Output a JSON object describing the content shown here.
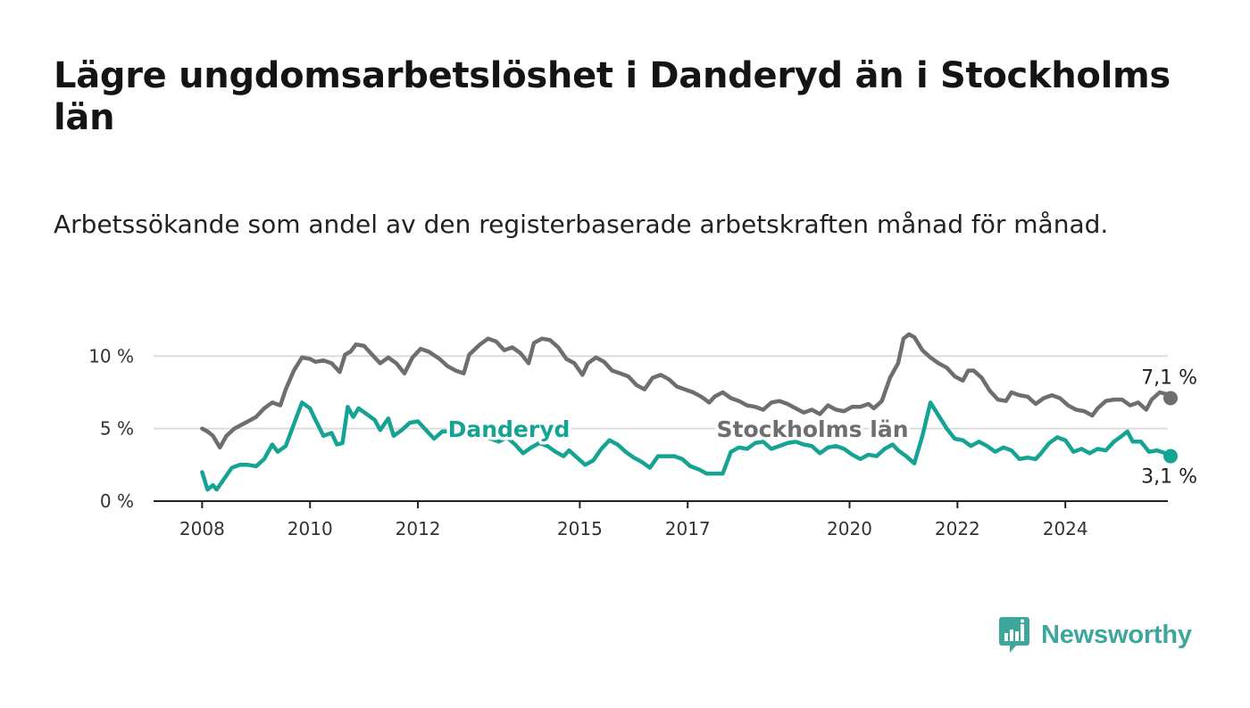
{
  "title": "Lägre ungdomsarbetslöshet i Danderyd än i Stockholms län",
  "subtitle": "Arbetssökande som andel av den registerbaserade arbetskraften månad för månad.",
  "brand": {
    "name": "Newsworthy",
    "color": "#3ea79b"
  },
  "chart_data": {
    "type": "line",
    "title": "Lägre ungdomsarbetslöshet i Danderyd än i Stockholms län",
    "subtitle": "Arbetssökande som andel av den registerbaserade arbetskraften månad för månad.",
    "xlabel": "",
    "ylabel": "",
    "x_range": [
      2007.1,
      2025.9
    ],
    "ylim": [
      0,
      11.8
    ],
    "y_ticks": [
      {
        "value": 0,
        "label": "0 %"
      },
      {
        "value": 5,
        "label": "5 %"
      },
      {
        "value": 10,
        "label": "10 %"
      }
    ],
    "x_ticks": [
      {
        "value": 2008,
        "label": "2008"
      },
      {
        "value": 2010,
        "label": "2010"
      },
      {
        "value": 2012,
        "label": "2012"
      },
      {
        "value": 2015,
        "label": "2015"
      },
      {
        "value": 2017,
        "label": "2017"
      },
      {
        "value": 2020,
        "label": "2020"
      },
      {
        "value": 2022,
        "label": "2022"
      },
      {
        "value": 2024,
        "label": "2024"
      }
    ],
    "grid": "horizontal",
    "legend": "direct labels on lines",
    "series": [
      {
        "name": "Stockholms län",
        "color": "#6e6d72",
        "end_label": "7,1 %",
        "points": [
          [
            2008.0,
            5.0
          ],
          [
            2008.1,
            4.8
          ],
          [
            2008.2,
            4.5
          ],
          [
            2008.33,
            3.7
          ],
          [
            2008.45,
            4.5
          ],
          [
            2008.6,
            5.0
          ],
          [
            2008.75,
            5.3
          ],
          [
            2008.9,
            5.6
          ],
          [
            2009.0,
            5.8
          ],
          [
            2009.15,
            6.4
          ],
          [
            2009.3,
            6.8
          ],
          [
            2009.45,
            6.6
          ],
          [
            2009.55,
            7.7
          ],
          [
            2009.7,
            9.0
          ],
          [
            2009.85,
            9.9
          ],
          [
            2010.0,
            9.8
          ],
          [
            2010.1,
            9.6
          ],
          [
            2010.25,
            9.7
          ],
          [
            2010.4,
            9.5
          ],
          [
            2010.55,
            8.9
          ],
          [
            2010.65,
            10.1
          ],
          [
            2010.75,
            10.3
          ],
          [
            2010.85,
            10.8
          ],
          [
            2011.0,
            10.7
          ],
          [
            2011.15,
            10.1
          ],
          [
            2011.3,
            9.5
          ],
          [
            2011.45,
            9.9
          ],
          [
            2011.6,
            9.5
          ],
          [
            2011.75,
            8.8
          ],
          [
            2011.9,
            9.9
          ],
          [
            2012.05,
            10.5
          ],
          [
            2012.2,
            10.3
          ],
          [
            2012.4,
            9.8
          ],
          [
            2012.55,
            9.3
          ],
          [
            2012.7,
            9.0
          ],
          [
            2012.85,
            8.8
          ],
          [
            2012.95,
            10.1
          ],
          [
            2013.15,
            10.8
          ],
          [
            2013.3,
            11.2
          ],
          [
            2013.45,
            11.0
          ],
          [
            2013.6,
            10.4
          ],
          [
            2013.75,
            10.6
          ],
          [
            2013.9,
            10.2
          ],
          [
            2014.05,
            9.5
          ],
          [
            2014.15,
            10.9
          ],
          [
            2014.3,
            11.2
          ],
          [
            2014.45,
            11.1
          ],
          [
            2014.6,
            10.6
          ],
          [
            2014.75,
            9.8
          ],
          [
            2014.9,
            9.5
          ],
          [
            2015.05,
            8.7
          ],
          [
            2015.15,
            9.5
          ],
          [
            2015.3,
            9.9
          ],
          [
            2015.45,
            9.6
          ],
          [
            2015.6,
            9.0
          ],
          [
            2015.75,
            8.8
          ],
          [
            2015.9,
            8.6
          ],
          [
            2016.05,
            8.0
          ],
          [
            2016.2,
            7.7
          ],
          [
            2016.35,
            8.5
          ],
          [
            2016.5,
            8.7
          ],
          [
            2016.65,
            8.4
          ],
          [
            2016.8,
            7.9
          ],
          [
            2016.95,
            7.7
          ],
          [
            2017.1,
            7.5
          ],
          [
            2017.25,
            7.2
          ],
          [
            2017.4,
            6.8
          ],
          [
            2017.5,
            7.2
          ],
          [
            2017.65,
            7.5
          ],
          [
            2017.8,
            7.1
          ],
          [
            2017.95,
            6.9
          ],
          [
            2018.1,
            6.6
          ],
          [
            2018.25,
            6.5
          ],
          [
            2018.4,
            6.3
          ],
          [
            2018.55,
            6.8
          ],
          [
            2018.7,
            6.9
          ],
          [
            2018.85,
            6.7
          ],
          [
            2019.0,
            6.4
          ],
          [
            2019.15,
            6.1
          ],
          [
            2019.3,
            6.3
          ],
          [
            2019.45,
            6.0
          ],
          [
            2019.6,
            6.6
          ],
          [
            2019.75,
            6.3
          ],
          [
            2019.9,
            6.2
          ],
          [
            2020.05,
            6.5
          ],
          [
            2020.2,
            6.5
          ],
          [
            2020.35,
            6.7
          ],
          [
            2020.45,
            6.4
          ],
          [
            2020.6,
            6.9
          ],
          [
            2020.75,
            8.5
          ],
          [
            2020.9,
            9.5
          ],
          [
            2021.0,
            11.2
          ],
          [
            2021.1,
            11.5
          ],
          [
            2021.2,
            11.3
          ],
          [
            2021.35,
            10.4
          ],
          [
            2021.5,
            9.9
          ],
          [
            2021.65,
            9.5
          ],
          [
            2021.8,
            9.2
          ],
          [
            2021.95,
            8.6
          ],
          [
            2022.1,
            8.3
          ],
          [
            2022.2,
            9.0
          ],
          [
            2022.3,
            9.0
          ],
          [
            2022.45,
            8.5
          ],
          [
            2022.6,
            7.6
          ],
          [
            2022.75,
            7.0
          ],
          [
            2022.9,
            6.9
          ],
          [
            2023.0,
            7.5
          ],
          [
            2023.15,
            7.3
          ],
          [
            2023.3,
            7.2
          ],
          [
            2023.45,
            6.7
          ],
          [
            2023.6,
            7.1
          ],
          [
            2023.75,
            7.3
          ],
          [
            2023.9,
            7.1
          ],
          [
            2024.05,
            6.6
          ],
          [
            2024.2,
            6.3
          ],
          [
            2024.35,
            6.2
          ],
          [
            2024.5,
            5.9
          ],
          [
            2024.6,
            6.4
          ],
          [
            2024.75,
            6.9
          ],
          [
            2024.9,
            7.0
          ],
          [
            2025.05,
            7.0
          ],
          [
            2025.2,
            6.6
          ],
          [
            2025.35,
            6.8
          ],
          [
            2025.5,
            6.3
          ],
          [
            2025.6,
            7.0
          ],
          [
            2025.75,
            7.5
          ],
          [
            2025.85,
            7.4
          ],
          [
            2025.95,
            7.1
          ]
        ]
      },
      {
        "name": "Danderyd",
        "color": "#15a394",
        "end_label": "3,1 %",
        "points": [
          [
            2008.0,
            2.0
          ],
          [
            2008.1,
            0.8
          ],
          [
            2008.2,
            1.1
          ],
          [
            2008.27,
            0.8
          ],
          [
            2008.4,
            1.5
          ],
          [
            2008.55,
            2.3
          ],
          [
            2008.7,
            2.5
          ],
          [
            2008.85,
            2.5
          ],
          [
            2009.0,
            2.4
          ],
          [
            2009.15,
            2.9
          ],
          [
            2009.3,
            3.9
          ],
          [
            2009.4,
            3.4
          ],
          [
            2009.55,
            3.8
          ],
          [
            2009.7,
            5.3
          ],
          [
            2009.85,
            6.8
          ],
          [
            2010.0,
            6.4
          ],
          [
            2010.1,
            5.6
          ],
          [
            2010.25,
            4.5
          ],
          [
            2010.4,
            4.7
          ],
          [
            2010.5,
            3.9
          ],
          [
            2010.6,
            4.0
          ],
          [
            2010.7,
            6.5
          ],
          [
            2010.8,
            5.8
          ],
          [
            2010.9,
            6.4
          ],
          [
            2011.05,
            6.0
          ],
          [
            2011.2,
            5.6
          ],
          [
            2011.3,
            4.9
          ],
          [
            2011.45,
            5.7
          ],
          [
            2011.55,
            4.5
          ],
          [
            2011.7,
            4.9
          ],
          [
            2011.85,
            5.4
          ],
          [
            2012.0,
            5.5
          ],
          [
            2012.15,
            4.9
          ],
          [
            2012.3,
            4.3
          ],
          [
            2012.45,
            4.8
          ],
          [
            2012.6,
            4.8
          ],
          [
            2012.75,
            4.4
          ],
          [
            2012.9,
            4.9
          ],
          [
            2013.05,
            5.0
          ],
          [
            2013.2,
            4.6
          ],
          [
            2013.35,
            4.3
          ],
          [
            2013.5,
            4.1
          ],
          [
            2013.65,
            4.4
          ],
          [
            2013.8,
            3.9
          ],
          [
            2013.95,
            3.3
          ],
          [
            2014.1,
            3.7
          ],
          [
            2014.25,
            4.0
          ],
          [
            2014.4,
            3.8
          ],
          [
            2014.55,
            3.4
          ],
          [
            2014.7,
            3.1
          ],
          [
            2014.8,
            3.5
          ],
          [
            2014.95,
            3.0
          ],
          [
            2015.1,
            2.5
          ],
          [
            2015.25,
            2.8
          ],
          [
            2015.4,
            3.6
          ],
          [
            2015.55,
            4.2
          ],
          [
            2015.7,
            3.9
          ],
          [
            2015.85,
            3.4
          ],
          [
            2016.0,
            3.0
          ],
          [
            2016.15,
            2.7
          ],
          [
            2016.3,
            2.3
          ],
          [
            2016.45,
            3.1
          ],
          [
            2016.6,
            3.1
          ],
          [
            2016.75,
            3.1
          ],
          [
            2016.9,
            2.9
          ],
          [
            2017.05,
            2.4
          ],
          [
            2017.2,
            2.2
          ],
          [
            2017.35,
            1.9
          ],
          [
            2017.5,
            1.9
          ],
          [
            2017.65,
            1.9
          ],
          [
            2017.8,
            3.4
          ],
          [
            2017.95,
            3.7
          ],
          [
            2018.1,
            3.6
          ],
          [
            2018.25,
            4.0
          ],
          [
            2018.4,
            4.1
          ],
          [
            2018.55,
            3.6
          ],
          [
            2018.7,
            3.8
          ],
          [
            2018.85,
            4.0
          ],
          [
            2019.0,
            4.1
          ],
          [
            2019.15,
            3.9
          ],
          [
            2019.3,
            3.8
          ],
          [
            2019.45,
            3.3
          ],
          [
            2019.6,
            3.7
          ],
          [
            2019.75,
            3.8
          ],
          [
            2019.9,
            3.6
          ],
          [
            2020.05,
            3.2
          ],
          [
            2020.2,
            2.9
          ],
          [
            2020.35,
            3.2
          ],
          [
            2020.5,
            3.1
          ],
          [
            2020.65,
            3.6
          ],
          [
            2020.8,
            3.9
          ],
          [
            2020.9,
            3.5
          ],
          [
            2021.05,
            3.1
          ],
          [
            2021.2,
            2.6
          ],
          [
            2021.35,
            4.5
          ],
          [
            2021.5,
            6.8
          ],
          [
            2021.65,
            5.9
          ],
          [
            2021.8,
            5.0
          ],
          [
            2021.95,
            4.3
          ],
          [
            2022.1,
            4.2
          ],
          [
            2022.25,
            3.8
          ],
          [
            2022.4,
            4.1
          ],
          [
            2022.55,
            3.8
          ],
          [
            2022.7,
            3.4
          ],
          [
            2022.85,
            3.7
          ],
          [
            2023.0,
            3.5
          ],
          [
            2023.15,
            2.9
          ],
          [
            2023.3,
            3.0
          ],
          [
            2023.45,
            2.9
          ],
          [
            2023.55,
            3.3
          ],
          [
            2023.7,
            4.0
          ],
          [
            2023.85,
            4.4
          ],
          [
            2024.0,
            4.2
          ],
          [
            2024.15,
            3.4
          ],
          [
            2024.3,
            3.6
          ],
          [
            2024.45,
            3.3
          ],
          [
            2024.6,
            3.6
          ],
          [
            2024.75,
            3.5
          ],
          [
            2024.9,
            4.1
          ],
          [
            2025.05,
            4.5
          ],
          [
            2025.15,
            4.8
          ],
          [
            2025.25,
            4.1
          ],
          [
            2025.4,
            4.1
          ],
          [
            2025.55,
            3.4
          ],
          [
            2025.7,
            3.5
          ],
          [
            2025.85,
            3.3
          ],
          [
            2025.95,
            3.1
          ]
        ]
      }
    ]
  }
}
